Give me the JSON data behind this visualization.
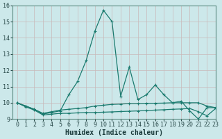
{
  "xlabel": "Humidex (Indice chaleur)",
  "background_color": "#cce8ea",
  "grid_color": "#c8b8b8",
  "line_color": "#1a7a6e",
  "xlim": [
    -0.5,
    23
  ],
  "ylim": [
    9,
    16
  ],
  "yticks": [
    9,
    10,
    11,
    12,
    13,
    14,
    15,
    16
  ],
  "xticks": [
    0,
    1,
    2,
    3,
    4,
    5,
    6,
    7,
    8,
    9,
    10,
    11,
    12,
    13,
    14,
    15,
    16,
    17,
    18,
    19,
    20,
    21,
    22,
    23
  ],
  "series_main_x": [
    0,
    1,
    2,
    3,
    4,
    5,
    6,
    7,
    8,
    9,
    10,
    11,
    12,
    13,
    14,
    15,
    16,
    17,
    18,
    19,
    20,
    21,
    22,
    23
  ],
  "series_main_y": [
    10.0,
    9.8,
    9.6,
    9.3,
    9.4,
    9.5,
    10.5,
    11.3,
    12.6,
    14.4,
    15.7,
    15.0,
    10.4,
    12.2,
    10.2,
    10.5,
    11.1,
    10.5,
    10.0,
    10.1,
    9.5,
    9.0,
    9.7,
    9.7
  ],
  "series_upper_x": [
    0,
    1,
    2,
    3,
    4,
    5,
    6,
    7,
    8,
    9,
    10,
    11,
    12,
    13,
    14,
    15,
    16,
    17,
    18,
    19,
    20,
    21,
    22,
    23
  ],
  "series_upper_y": [
    10.0,
    9.8,
    9.6,
    9.35,
    9.45,
    9.55,
    9.6,
    9.65,
    9.7,
    9.8,
    9.85,
    9.9,
    9.92,
    9.95,
    9.95,
    9.97,
    9.97,
    9.98,
    10.0,
    10.0,
    10.0,
    10.0,
    9.8,
    9.7
  ],
  "series_lower_x": [
    0,
    1,
    2,
    3,
    4,
    5,
    6,
    7,
    8,
    9,
    10,
    11,
    12,
    13,
    14,
    15,
    16,
    17,
    18,
    19,
    20,
    21,
    22,
    23
  ],
  "series_lower_y": [
    10.0,
    9.75,
    9.55,
    9.25,
    9.3,
    9.35,
    9.35,
    9.38,
    9.4,
    9.4,
    9.42,
    9.44,
    9.46,
    9.48,
    9.5,
    9.52,
    9.55,
    9.57,
    9.6,
    9.62,
    9.65,
    9.45,
    9.2,
    9.65
  ]
}
